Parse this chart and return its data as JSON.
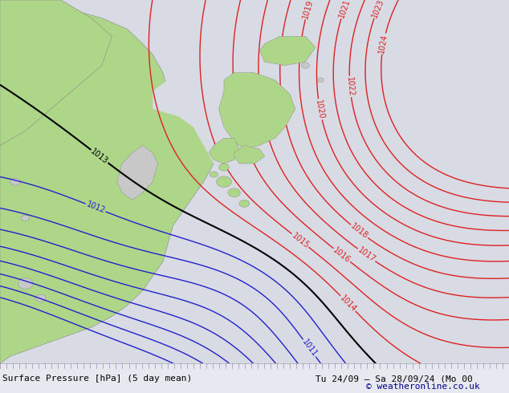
{
  "title_left": "Surface Pressure [hPa] (5 day mean)",
  "title_right": "Tu 24/09 – Sa 28/09/24 (Mo 00",
  "copyright": "© weatheronline.co.uk",
  "bg_color": "#e0e0e8",
  "ocean_color": "#d8dae4",
  "land_green": "#aed688",
  "land_gray": "#c8c8c8",
  "isobar_red": "#dd2222",
  "isobar_blue": "#2222cc",
  "isobar_black": "#000000",
  "bottom_bar_color": "#e8e8f0",
  "figsize": [
    6.34,
    4.9
  ],
  "dpi": 100
}
